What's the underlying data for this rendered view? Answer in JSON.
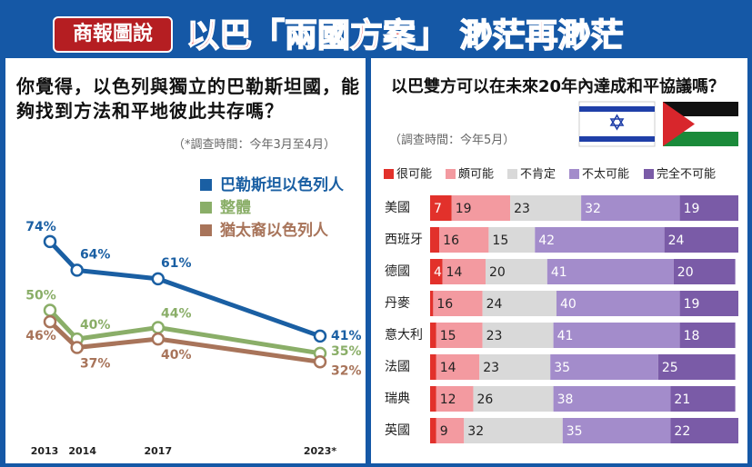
{
  "header": {
    "logo": "商報圖說",
    "title": "以巴「兩國方案」 渺茫再渺茫"
  },
  "chart_data": [
    {
      "type": "line",
      "title": "你覺得，以色列與獨立的巴勒斯坦國，能夠找到方法和平地彼此共存嗎？",
      "subtitle": "（*調查時間：今年3月至4月）",
      "x": [
        2013,
        2014,
        2017,
        2023
      ],
      "xlim": [
        2013,
        2023
      ],
      "xticks": [
        2013,
        2014,
        2017,
        {
          "value": 2023,
          "label": "2023*"
        }
      ],
      "ylim": [
        30,
        80
      ],
      "series": [
        {
          "name": "巴勒斯坦以色列人",
          "color": "#1a5fa3",
          "values": [
            74,
            64,
            61,
            41
          ],
          "value_labels": [
            "74%",
            "64%",
            "61%",
            "41%"
          ]
        },
        {
          "name": "整體",
          "color": "#8aae68",
          "values": [
            50,
            40,
            44,
            35
          ],
          "value_labels": [
            "50%",
            "40%",
            "44%",
            "35%"
          ]
        },
        {
          "name": "猶太裔以色列人",
          "color": "#a8745a",
          "values": [
            46,
            37,
            40,
            32
          ],
          "value_labels": [
            "46%",
            "37%",
            "40%",
            "32%"
          ]
        }
      ]
    },
    {
      "type": "stacked-bar",
      "title": "以巴雙方可以在未來20年內達成和平協議嗎？",
      "subtitle": "（調查時間：今年5月）",
      "categories": [
        "美國",
        "西班牙",
        "德國",
        "丹麥",
        "意大利",
        "法國",
        "瑞典",
        "英國"
      ],
      "xlim": [
        0,
        100
      ],
      "series": [
        {
          "name": "很可能",
          "color": "#e2312b",
          "values": [
            7,
            3,
            4,
            1,
            2,
            2,
            2,
            2
          ]
        },
        {
          "name": "頗可能",
          "color": "#f39aa0",
          "values": [
            19,
            16,
            14,
            16,
            15,
            14,
            12,
            9
          ]
        },
        {
          "name": "不肯定",
          "color": "#d9d9d9",
          "values": [
            23,
            15,
            20,
            24,
            23,
            23,
            26,
            32
          ]
        },
        {
          "name": "不太可能",
          "color": "#a38ccb",
          "values": [
            32,
            42,
            41,
            40,
            41,
            35,
            38,
            35
          ]
        },
        {
          "name": "完全不可能",
          "color": "#7a5ba7",
          "values": [
            19,
            24,
            20,
            19,
            18,
            25,
            21,
            22
          ]
        }
      ]
    }
  ]
}
